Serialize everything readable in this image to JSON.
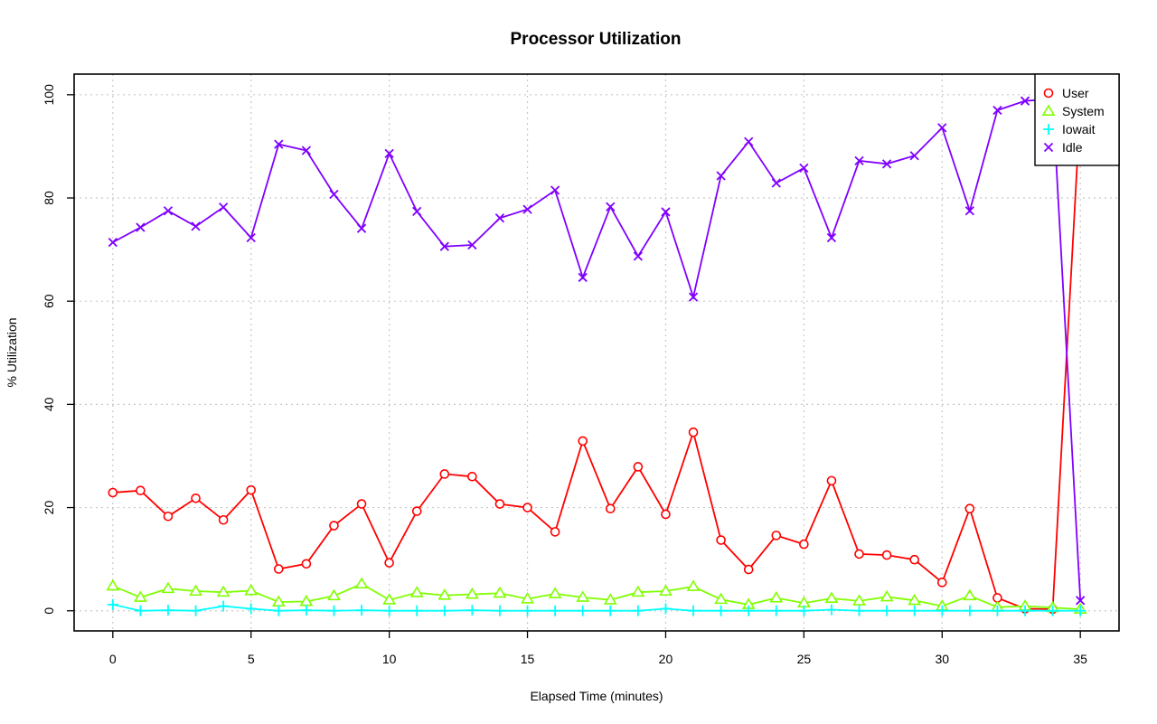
{
  "chart_data": {
    "type": "line",
    "title": "Processor Utilization",
    "xlabel": "Elapsed Time (minutes)",
    "ylabel": "% Utilization",
    "xlim": [
      -1.4,
      36.4
    ],
    "ylim": [
      -3.9,
      104
    ],
    "xticks": [
      0,
      5,
      10,
      15,
      20,
      25,
      30,
      35
    ],
    "yticks": [
      0,
      20,
      40,
      60,
      80,
      100
    ],
    "grid": true,
    "legend_position": "top-right",
    "x": [
      0,
      1,
      2,
      3,
      4,
      5,
      6,
      7,
      8,
      9,
      10,
      11,
      12,
      13,
      14,
      15,
      16,
      17,
      18,
      19,
      20,
      21,
      22,
      23,
      24,
      25,
      26,
      27,
      28,
      29,
      30,
      31,
      32,
      33,
      34,
      35
    ],
    "series": [
      {
        "name": "User",
        "color": "#ff0000",
        "marker": "circle",
        "values": [
          22.9,
          23.3,
          18.3,
          21.8,
          17.6,
          23.4,
          8.1,
          9.1,
          16.5,
          20.7,
          9.3,
          19.3,
          26.5,
          26.0,
          20.7,
          20.0,
          15.3,
          32.9,
          19.8,
          27.9,
          18.7,
          34.6,
          13.7,
          8.0,
          14.6,
          12.9,
          25.2,
          11.0,
          10.8,
          9.9,
          5.5,
          19.8,
          2.5,
          0.4,
          0.3,
          97.8
        ]
      },
      {
        "name": "System",
        "color": "#80ff00",
        "marker": "triangle",
        "values": [
          4.8,
          2.6,
          4.3,
          3.8,
          3.6,
          3.9,
          1.7,
          1.8,
          2.9,
          5.2,
          2.1,
          3.5,
          3.0,
          3.2,
          3.4,
          2.3,
          3.3,
          2.6,
          2.1,
          3.6,
          3.8,
          4.7,
          2.2,
          1.2,
          2.5,
          1.5,
          2.4,
          1.9,
          2.7,
          2.0,
          0.9,
          2.9,
          0.7,
          0.9,
          0.6,
          0.3
        ]
      },
      {
        "name": "Iowait",
        "color": "#00ffff",
        "marker": "plus",
        "values": [
          1.2,
          0.0,
          0.1,
          0.0,
          0.9,
          0.4,
          0.0,
          0.1,
          0.0,
          0.1,
          0.0,
          0.0,
          0.0,
          0.1,
          0.0,
          0.0,
          0.0,
          0.0,
          0.0,
          0.0,
          0.4,
          0.0,
          0.0,
          0.0,
          0.0,
          0.0,
          0.2,
          0.0,
          0.0,
          0.0,
          0.0,
          0.0,
          0.0,
          0.0,
          0.0,
          0.0
        ]
      },
      {
        "name": "Idle",
        "color": "#8000ff",
        "marker": "x",
        "values": [
          71.4,
          74.3,
          77.5,
          74.5,
          78.2,
          72.3,
          90.4,
          89.2,
          80.7,
          74.1,
          88.6,
          77.4,
          70.6,
          70.9,
          76.1,
          77.8,
          81.5,
          64.6,
          78.3,
          68.7,
          77.3,
          60.8,
          84.3,
          90.9,
          82.9,
          85.8,
          72.3,
          87.2,
          86.6,
          88.2,
          93.6,
          77.5,
          97.0,
          98.8,
          99.2,
          2.0
        ]
      }
    ]
  }
}
